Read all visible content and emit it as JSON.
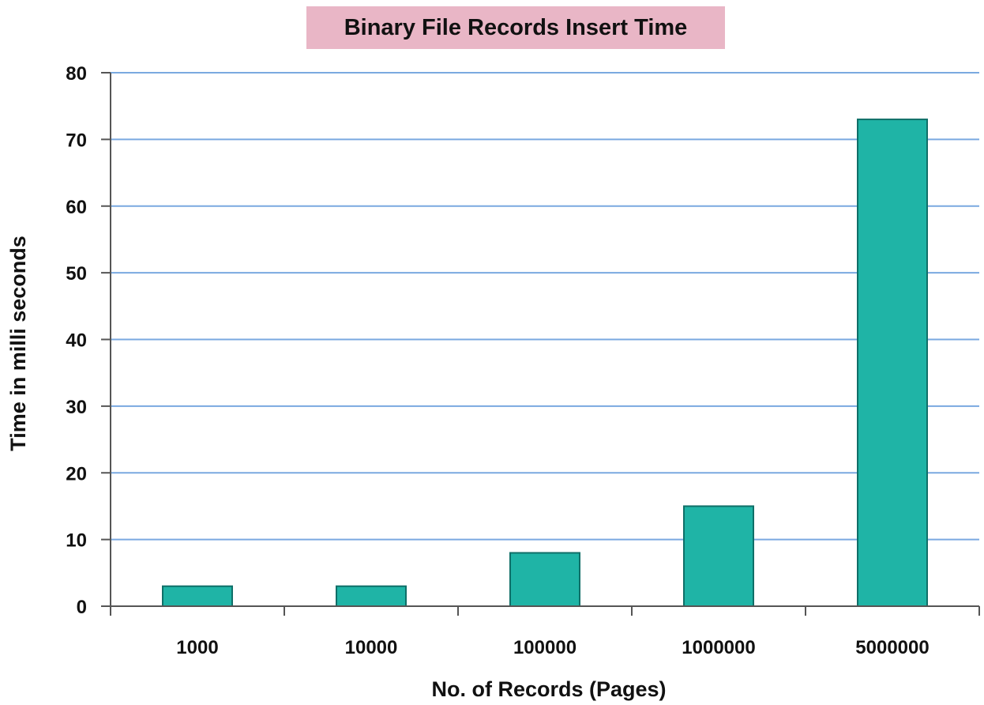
{
  "chart_data": {
    "type": "bar",
    "title": "Binary File Records Insert Time",
    "xlabel": "No. of Records (Pages)",
    "ylabel": "Time in milli seconds",
    "categories": [
      "1000",
      "10000",
      "100000",
      "1000000",
      "5000000"
    ],
    "values": [
      3,
      3,
      8,
      15,
      73
    ],
    "ylim": [
      0,
      80
    ],
    "yticks": [
      "0",
      "10",
      "20",
      "30",
      "40",
      "50",
      "60",
      "70",
      "80"
    ],
    "grid": true,
    "legend": "none",
    "colors": {
      "bar_fill": "#1fb4a6",
      "bar_stroke": "#0f6f68",
      "grid": "#7aa9e0",
      "axis": "#555555",
      "title_bg": "#e9b6c6"
    }
  }
}
